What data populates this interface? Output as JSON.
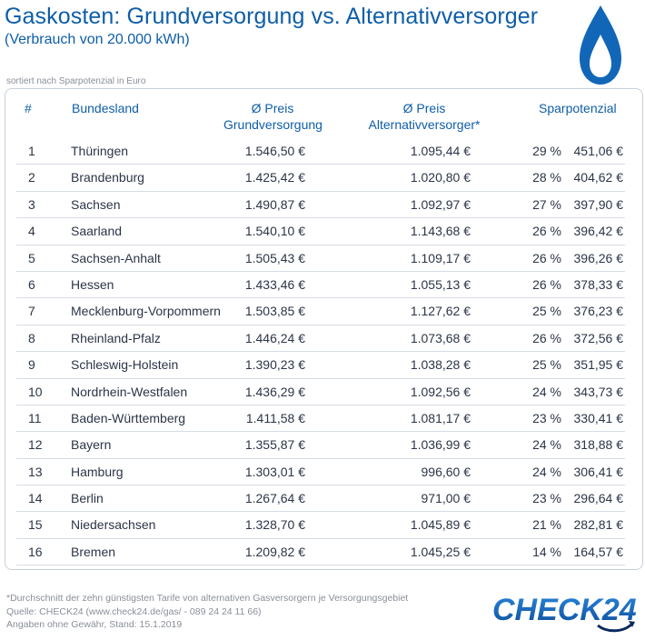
{
  "header": {
    "title": "Gaskosten: Grundversorgung vs. Alternativversorger",
    "subtitle": "(Verbrauch von 20.000 kWh)",
    "sort_note": "sortiert nach Sparpotenzial in Euro"
  },
  "table": {
    "col_num": "#",
    "col_land": "Bundesland",
    "col_grund_1": "Ø Preis",
    "col_grund_2": "Grundversorgung",
    "col_alt_1": "Ø Preis",
    "col_alt_2": "Alternativversorger*",
    "col_spar": "Sparpotenzial"
  },
  "chart_data": {
    "type": "table",
    "title": "Gaskosten: Grundversorgung vs. Alternativversorger",
    "columns": [
      "#",
      "Bundesland",
      "Ø Preis Grundversorgung",
      "Ø Preis Alternativversorger*",
      "Sparpotenzial",
      ""
    ],
    "rows": [
      [
        "1",
        "Thüringen",
        "1.546,50 €",
        "1.095,44 €",
        "29 %",
        "451,06 €"
      ],
      [
        "2",
        "Brandenburg",
        "1.425,42 €",
        "1.020,80 €",
        "28 %",
        "404,62 €"
      ],
      [
        "3",
        "Sachsen",
        "1.490,87 €",
        "1.092,97 €",
        "27 %",
        "397,90 €"
      ],
      [
        "4",
        "Saarland",
        "1.540,10 €",
        "1.143,68 €",
        "26 %",
        "396,42 €"
      ],
      [
        "5",
        "Sachsen-Anhalt",
        "1.505,43 €",
        "1.109,17 €",
        "26 %",
        "396,26 €"
      ],
      [
        "6",
        "Hessen",
        "1.433,46 €",
        "1.055,13 €",
        "26 %",
        "378,33 €"
      ],
      [
        "7",
        "Mecklenburg-Vorpommern",
        "1.503,85 €",
        "1.127,62 €",
        "25 %",
        "376,23 €"
      ],
      [
        "8",
        "Rheinland-Pfalz",
        "1.446,24 €",
        "1.073,68 €",
        "26 %",
        "372,56 €"
      ],
      [
        "9",
        "Schleswig-Holstein",
        "1.390,23 €",
        "1.038,28 €",
        "25 %",
        "351,95 €"
      ],
      [
        "10",
        "Nordrhein-Westfalen",
        "1.436,29 €",
        "1.092,56 €",
        "24 %",
        "343,73 €"
      ],
      [
        "11",
        "Baden-Württemberg",
        "1.411,58 €",
        "1.081,17 €",
        "23 %",
        "330,41 €"
      ],
      [
        "12",
        "Bayern",
        "1.355,87 €",
        "1.036,99 €",
        "24 %",
        "318,88 €"
      ],
      [
        "13",
        "Hamburg",
        "1.303,01 €",
        "996,60 €",
        "24 %",
        "306,41 €"
      ],
      [
        "14",
        "Berlin",
        "1.267,64 €",
        "971,00 €",
        "23 %",
        "296,64 €"
      ],
      [
        "15",
        "Niedersachsen",
        "1.328,70 €",
        "1.045,89 €",
        "21 %",
        "282,81 €"
      ],
      [
        "16",
        "Bremen",
        "1.209,82 €",
        "1.045,25 €",
        "14 %",
        "164,57 €"
      ]
    ]
  },
  "footer": {
    "note": "*Durchschnitt der zehn günstigsten Tarife von alternativen Gasversorgern je Versorgungsgebiet",
    "source": "Quelle: CHECK24 (www.check24.de/gas/ - 089 24 24 11 66)",
    "disclaimer": "Angaben ohne Gewähr, Stand: 15.1.2019"
  },
  "logo": {
    "text": "CHECK24",
    "icon": "flame-icon"
  },
  "colors": {
    "brand_blue": "#0f5ea8",
    "logo_blue": "#1a6cc0",
    "logo_dark": "#0a2a5c"
  }
}
